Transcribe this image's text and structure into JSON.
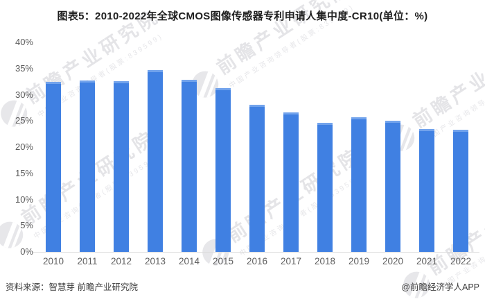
{
  "title": "图表5：2010-2022年全球CMOS图像传感器专利申请人集中度-CR10(单位：%)",
  "footer": {
    "source": "资料来源：智慧芽 前瞻产业研究院",
    "credit": "@前瞻经济学人APP"
  },
  "watermark": {
    "brand": "前瞻产业研究院",
    "tagline": "中国产业咨询领导者(股票:839599)",
    "logo_icon": "crescent-globe-icon"
  },
  "colors": {
    "bar": "#4080E2",
    "bar_cap": "#72A3EC",
    "axis_line": "#DCDCDC",
    "tick_text": "#595959",
    "title_text": "#1F1F1F",
    "footer_text": "#3D3D3D",
    "watermark": "#E4E4E7"
  },
  "chart_data": {
    "type": "bar",
    "title": "图表5：2010-2022年全球CMOS图像传感器专利申请人集中度-CR10(单位：%)",
    "unit": "%",
    "categories": [
      "2010",
      "2011",
      "2012",
      "2013",
      "2014",
      "2015",
      "2016",
      "2017",
      "2018",
      "2019",
      "2020",
      "2021",
      "2022"
    ],
    "values": [
      32.4,
      32.7,
      32.6,
      34.7,
      32.8,
      31.3,
      28.1,
      26.6,
      24.6,
      25.7,
      25.0,
      23.5,
      23.3
    ],
    "xlabel": "",
    "ylabel": "",
    "ylim": [
      0,
      40
    ],
    "ytick_step": 5,
    "ytick_labels": [
      "0%",
      "5%",
      "10%",
      "15%",
      "20%",
      "25%",
      "30%",
      "35%",
      "40%"
    ],
    "grid": false,
    "legend": false
  }
}
